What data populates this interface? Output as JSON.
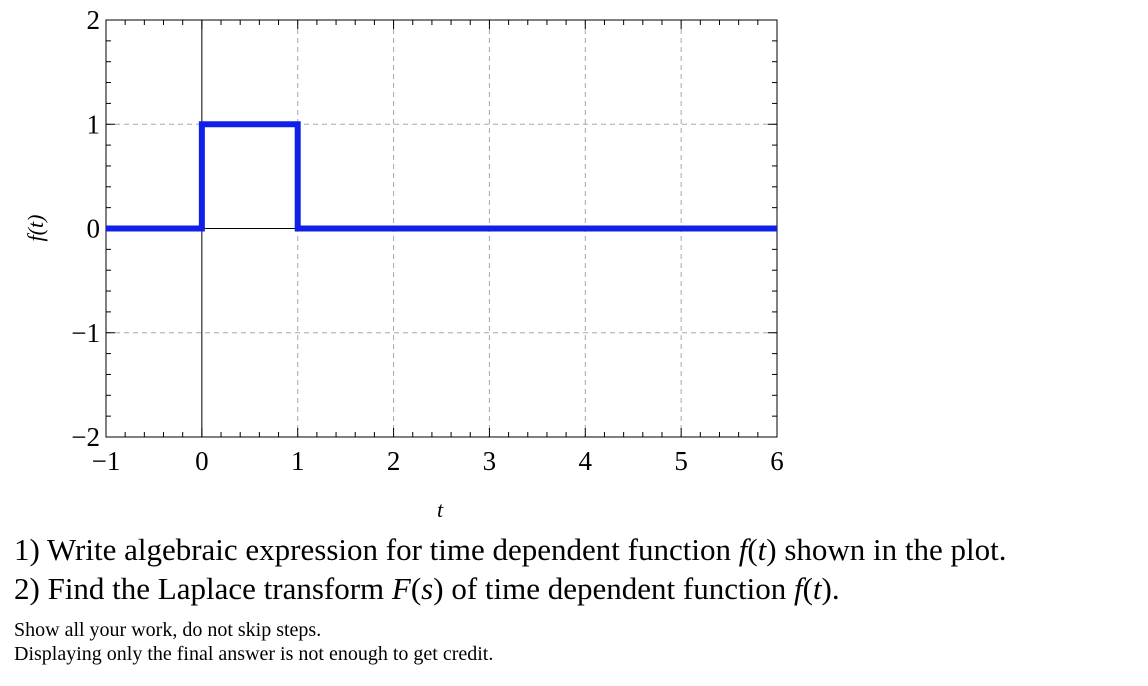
{
  "chart_data": {
    "type": "line",
    "title": "",
    "xlabel": "t",
    "ylabel": "f(t)",
    "xlim": [
      -1,
      6
    ],
    "ylim": [
      -2,
      2
    ],
    "x_ticks": [
      -1,
      0,
      1,
      2,
      3,
      4,
      5,
      6
    ],
    "y_ticks": [
      -2,
      -1,
      0,
      1,
      2
    ],
    "x_tick_labels": [
      "−1",
      "0",
      "1",
      "2",
      "3",
      "4",
      "5",
      "6"
    ],
    "y_tick_labels": [
      "−2",
      "−1",
      "0",
      "1",
      "2"
    ],
    "grid": true,
    "grid_style": "dashed",
    "series": [
      {
        "color": "#1020e8",
        "step": true,
        "x": [
          -1,
          0,
          0,
          1,
          1,
          6
        ],
        "y": [
          0,
          0,
          1,
          1,
          0,
          0
        ]
      }
    ]
  },
  "questions": {
    "q1": {
      "prefix": "1) Write algebraic expression for time dependent function ",
      "fn": "f",
      "paren_open": "(",
      "var": "t",
      "paren_close": ")",
      "suffix": " shown in the plot."
    },
    "q2": {
      "prefix": "2) Find the Laplace transform ",
      "F": "F",
      "paren_open": "(",
      "s": "s",
      "paren_close": ")",
      "middle": " of time dependent function ",
      "fn": "f",
      "paren_open2": "(",
      "var": "t",
      "suffix": ")."
    },
    "note1": "Show all your work, do not skip steps.",
    "note2": "Displaying only the final answer is not enough to get credit."
  }
}
